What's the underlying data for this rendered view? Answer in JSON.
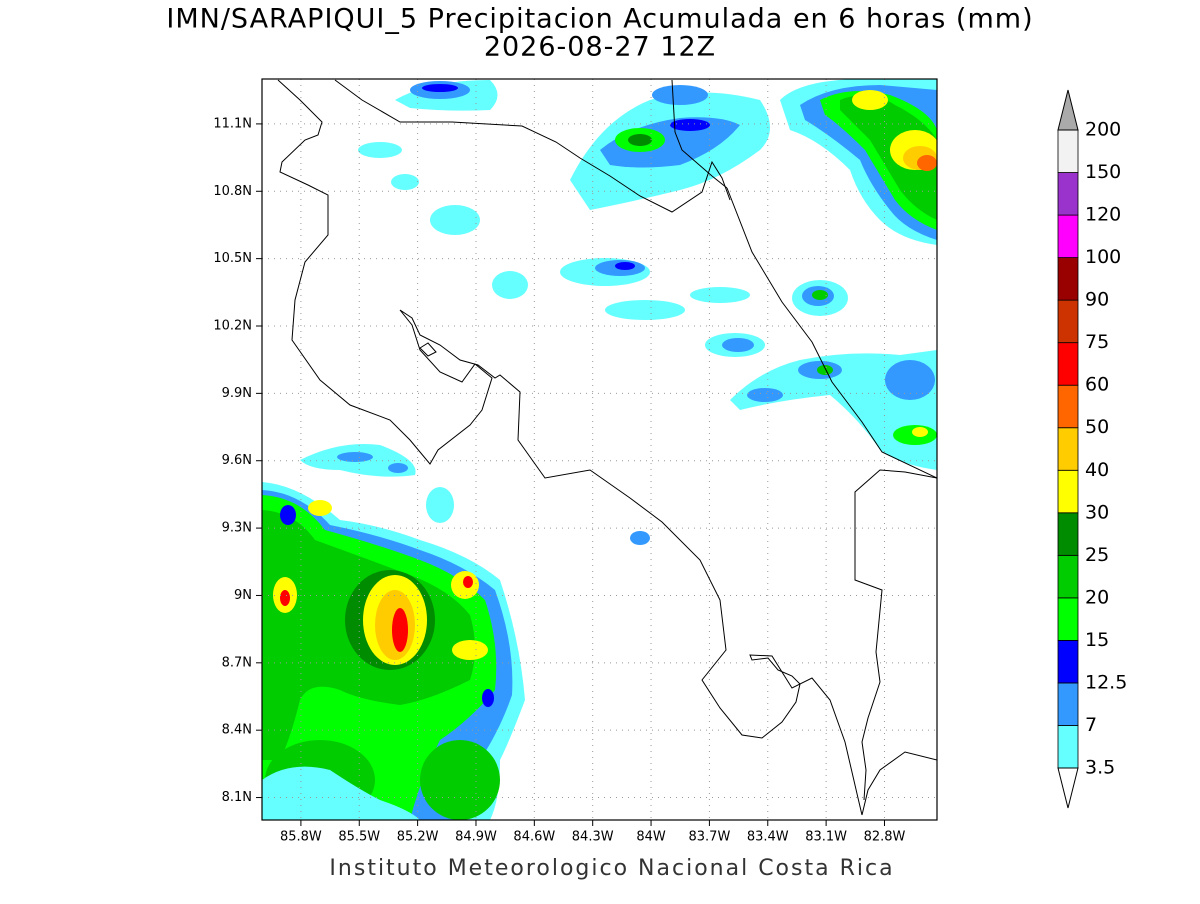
{
  "map": {
    "title": "IMN/SARAPIQUI_5 Precipitacion Acumulada en 6 horas (mm)",
    "subtitle": "2026-08-27 12Z",
    "xlim": [
      -86.0,
      -82.53
    ],
    "ylim": [
      8.0,
      11.3
    ],
    "grid": true,
    "lat_ticks": [
      {
        "value": 8.1,
        "label": "8.1N"
      },
      {
        "value": 8.4,
        "label": "8.4N"
      },
      {
        "value": 8.7,
        "label": "8.7N"
      },
      {
        "value": 9.0,
        "label": "9N"
      },
      {
        "value": 9.3,
        "label": "9.3N"
      },
      {
        "value": 9.6,
        "label": "9.6N"
      },
      {
        "value": 9.9,
        "label": "9.9N"
      },
      {
        "value": 10.2,
        "label": "10.2N"
      },
      {
        "value": 10.5,
        "label": "10.5N"
      },
      {
        "value": 10.8,
        "label": "10.8N"
      },
      {
        "value": 11.1,
        "label": "11.1N"
      }
    ],
    "lon_ticks": [
      {
        "value": -85.8,
        "label": "85.8W"
      },
      {
        "value": -85.5,
        "label": "85.5W"
      },
      {
        "value": -85.2,
        "label": "85.2W"
      },
      {
        "value": -84.9,
        "label": "84.9W"
      },
      {
        "value": -84.6,
        "label": "84.6W"
      },
      {
        "value": -84.3,
        "label": "84.3W"
      },
      {
        "value": -84.0,
        "label": "84W"
      },
      {
        "value": -83.7,
        "label": "83.7W"
      },
      {
        "value": -83.4,
        "label": "83.4W"
      },
      {
        "value": -83.1,
        "label": "83.1W"
      },
      {
        "value": -82.8,
        "label": "82.8W"
      }
    ],
    "colorbar": {
      "levels": [
        3.5,
        7,
        12.5,
        15,
        20,
        25,
        30,
        40,
        50,
        60,
        75,
        90,
        100,
        120,
        150,
        200
      ],
      "colors": [
        "#66ffff",
        "#3399ff",
        "#0000ff",
        "#00ff00",
        "#00cc00",
        "#008c00",
        "#ffff00",
        "#ffcc00",
        "#ff6600",
        "#ff0000",
        "#cc3300",
        "#990000",
        "#ff00ff",
        "#9933cc",
        "#f2f2f2"
      ],
      "under_color": "#ffffff",
      "over_color": "#aaaaaa"
    },
    "footer": "Instituto Meteorologico Nacional Costa Rica"
  }
}
